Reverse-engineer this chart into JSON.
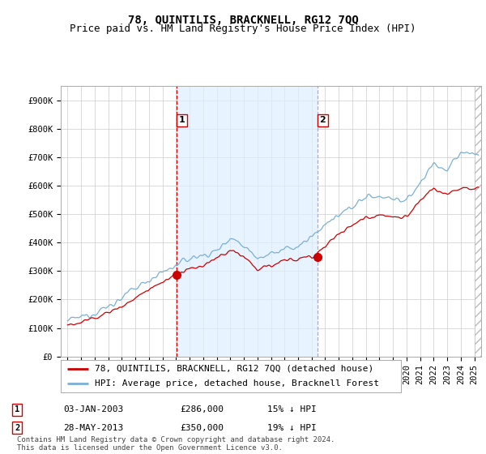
{
  "title": "78, QUINTILIS, BRACKNELL, RG12 7QQ",
  "subtitle": "Price paid vs. HM Land Registry's House Price Index (HPI)",
  "ylabel_ticks": [
    "£0",
    "£100K",
    "£200K",
    "£300K",
    "£400K",
    "£500K",
    "£600K",
    "£700K",
    "£800K",
    "£900K"
  ],
  "ytick_values": [
    0,
    100000,
    200000,
    300000,
    400000,
    500000,
    600000,
    700000,
    800000,
    900000
  ],
  "ylim": [
    0,
    950000
  ],
  "xlim_start": 1994.5,
  "xlim_end": 2025.5,
  "hpi_color": "#7ab0d4",
  "hpi_fill_color": "#ddeeff",
  "price_color": "#cc0000",
  "vline1_color": "#cc0000",
  "vline1_style": "--",
  "vline2_color": "#aaaacc",
  "vline2_style": "--",
  "grid_color": "#cccccc",
  "bg_color": "#ffffff",
  "legend_label_red": "78, QUINTILIS, BRACKNELL, RG12 7QQ (detached house)",
  "legend_label_blue": "HPI: Average price, detached house, Bracknell Forest",
  "marker1_x": 2003.02,
  "marker1_y": 286000,
  "marker1_label": "1",
  "marker1_date": "03-JAN-2003",
  "marker1_price": "£286,000",
  "marker1_pct": "15% ↓ HPI",
  "marker2_x": 2013.42,
  "marker2_y": 350000,
  "marker2_label": "2",
  "marker2_date": "28-MAY-2013",
  "marker2_price": "£350,000",
  "marker2_pct": "19% ↓ HPI",
  "hatch_start": 2025.0,
  "footer_text": "Contains HM Land Registry data © Crown copyright and database right 2024.\nThis data is licensed under the Open Government Licence v3.0.",
  "title_fontsize": 10,
  "subtitle_fontsize": 9,
  "tick_fontsize": 7.5,
  "legend_fontsize": 8,
  "footer_fontsize": 6.5
}
